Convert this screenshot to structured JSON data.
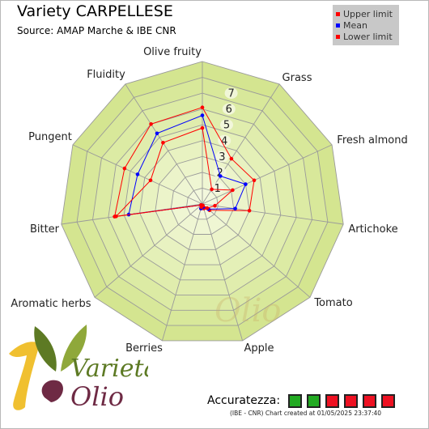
{
  "header": {
    "title": "Variety CARPELLESE",
    "source": "Source: AMAP Marche & IBE CNR"
  },
  "legend": {
    "items": [
      {
        "label": "Upper limit",
        "color": "#ff0000"
      },
      {
        "label": "Mean",
        "color": "#0000ff"
      },
      {
        "label": "Lower limit",
        "color": "#ff0000"
      }
    ]
  },
  "chart_data": {
    "type": "radar",
    "title": "Variety CARPELLESE",
    "subtitle": "Source: AMAP Marche & IBE CNR",
    "axes": [
      "Olive fruity",
      "Grass",
      "Fresh almond",
      "Artichoke",
      "Tomato",
      "Apple",
      "Berries",
      "Aromatic herbs",
      "Bitter",
      "Pungent",
      "Fluidity"
    ],
    "r_ticks": [
      "1",
      "2",
      "3",
      "4",
      "5",
      "6",
      "7"
    ],
    "r_range": [
      0,
      9
    ],
    "grid": true,
    "legend_position": "top-right",
    "series": [
      {
        "name": "Upper limit",
        "color": "#ff0000",
        "values": [
          6.1,
          3.4,
          3.6,
          3.0,
          0.6,
          0.3,
          0.3,
          0.1,
          5.6,
          5.4,
          6.0
        ]
      },
      {
        "name": "Mean",
        "color": "#0000ff",
        "values": [
          5.6,
          2.1,
          3.0,
          2.1,
          0.5,
          0.2,
          0.3,
          0.1,
          4.7,
          4.5,
          5.3
        ]
      },
      {
        "name": "Lower limit",
        "color": "#ff0000",
        "values": [
          4.8,
          1.1,
          2.1,
          0.8,
          0.4,
          0.1,
          0.2,
          0.1,
          5.5,
          3.6,
          4.6
        ]
      }
    ]
  },
  "accuracy": {
    "label": "Accuratezza:",
    "boxes": [
      "#22aa22",
      "#22aa22",
      "#ee1122",
      "#ee1122",
      "#ee1122",
      "#ee1122"
    ]
  },
  "footer": {
    "credit": "(IBE - CNR) Chart created at 01/05/2025 23:37:40"
  },
  "logo": {
    "line1": "Varietà",
    "line2": "Olio",
    "leaf_colors": [
      "#5d7a24",
      "#8fa83a",
      "#6e2a44"
    ],
    "accent_color": "#f0c030"
  }
}
